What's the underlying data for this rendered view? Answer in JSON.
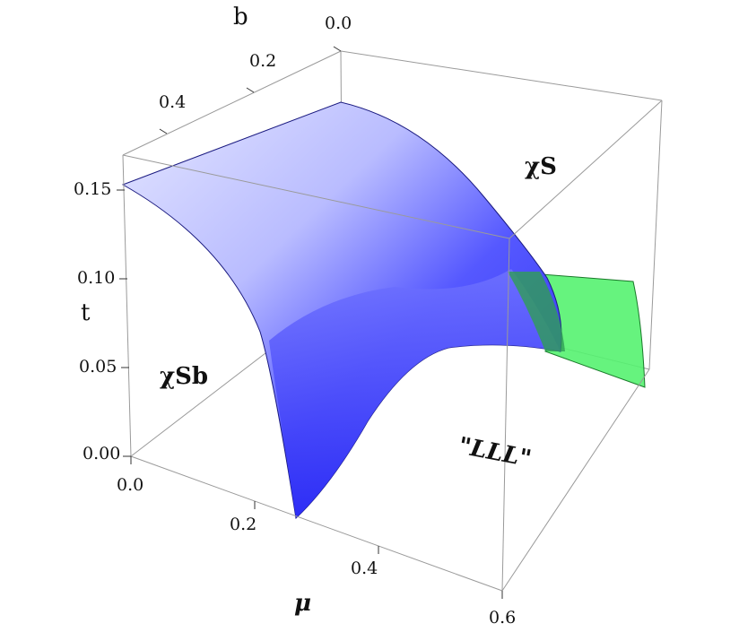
{
  "chart_data": {
    "type": "surface3d",
    "axes": {
      "x": {
        "label": "μ",
        "range": [
          0.0,
          0.6
        ],
        "ticks": [
          "0.0",
          "0.2",
          "0.4",
          "0.6"
        ]
      },
      "y": {
        "label": "b",
        "range": [
          0.0,
          0.5
        ],
        "ticks": [
          "0.0",
          "0.2",
          "0.4"
        ]
      },
      "z": {
        "label": "t",
        "range": [
          0.0,
          0.17
        ],
        "ticks": [
          "0.00",
          "0.05",
          "0.10",
          "0.15"
        ]
      }
    },
    "surfaces": [
      {
        "color": "#3333ff"
      },
      {
        "color": "#33ff55"
      }
    ],
    "region_labels": [
      "χSb",
      "χS",
      "\"LLL\""
    ]
  }
}
